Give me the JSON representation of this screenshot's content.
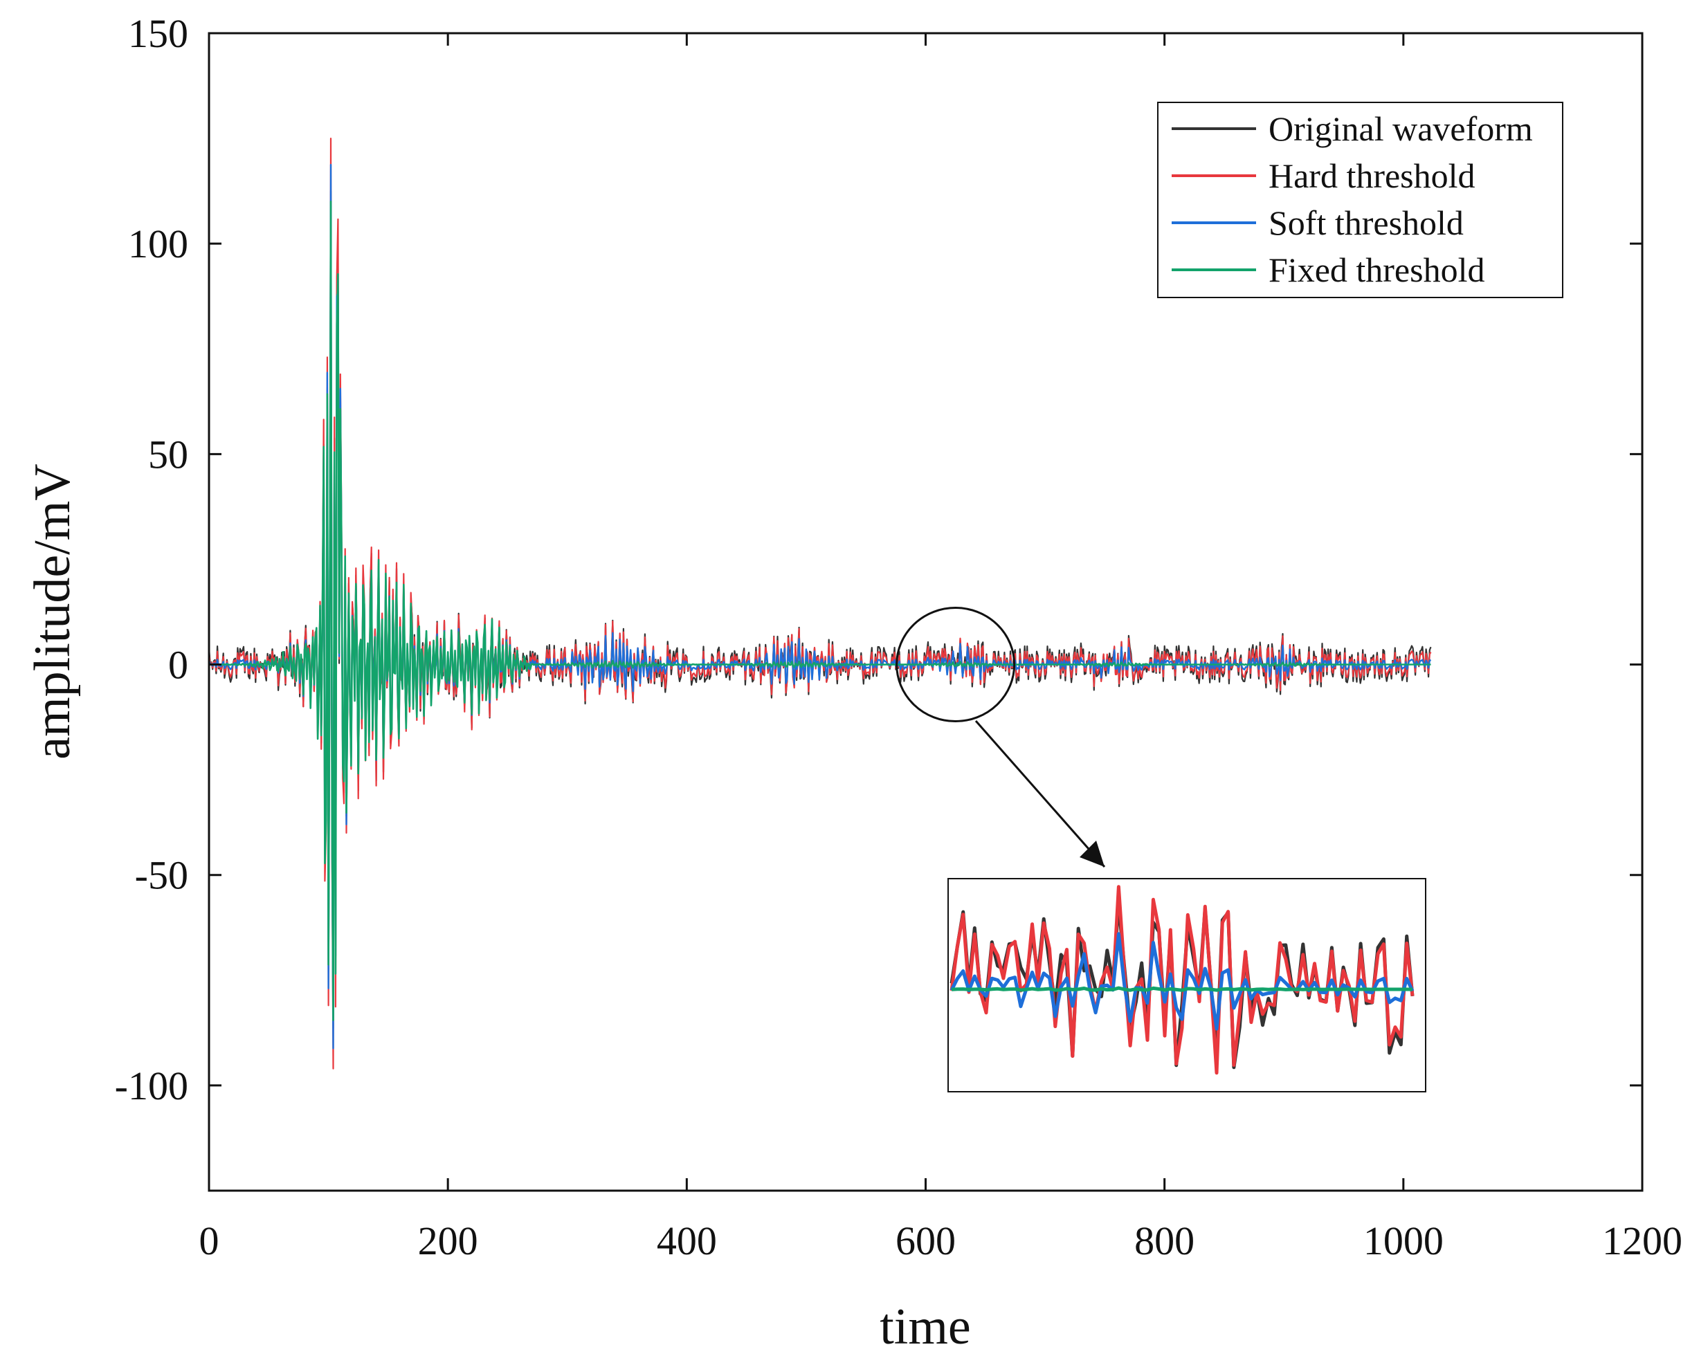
{
  "chart_data": {
    "type": "line",
    "title": "",
    "xlabel": "time",
    "ylabel": "amplitude/mV",
    "xlim": [
      0,
      1200
    ],
    "ylim": [
      -125,
      150
    ],
    "xticks": [
      0,
      200,
      400,
      600,
      800,
      1000,
      1200
    ],
    "yticks": [
      -100,
      -50,
      0,
      50,
      100,
      150
    ],
    "xtick_labels": [
      "0",
      "200",
      "400",
      "600",
      "800",
      "1000",
      "1200"
    ],
    "ytick_labels": [
      "-100",
      "-50",
      "0",
      "50",
      "100",
      "150"
    ],
    "grid": false,
    "legend_position": "top-right",
    "x_range": [
      0,
      1023
    ],
    "series": [
      {
        "name": "Original waveform",
        "color": "#333333"
      },
      {
        "name": "Hard threshold",
        "color": "#e8383d"
      },
      {
        "name": "Soft threshold",
        "color": "#1e6fd9"
      },
      {
        "name": "Fixed threshold",
        "color": "#13a36b"
      }
    ],
    "signal_peaks": [
      {
        "x": 99,
        "y": 73
      },
      {
        "x": 102,
        "y": 125
      },
      {
        "x": 107,
        "y": 92
      },
      {
        "x": 110,
        "y": 69
      },
      {
        "x": 100,
        "y": -81
      },
      {
        "x": 104,
        "y": -96
      },
      {
        "x": 115,
        "y": -40
      }
    ],
    "annotation": {
      "type": "zoom-inset",
      "circle_center": [
        625,
        0
      ],
      "region": [
        600,
        680
      ],
      "target": "inset-bottom-right"
    }
  }
}
